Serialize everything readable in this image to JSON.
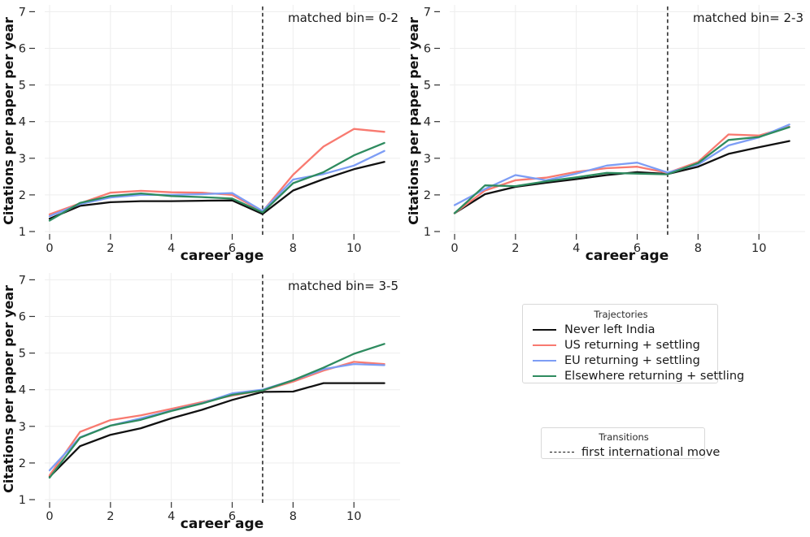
{
  "figure": {
    "ylabel": "Citations per paper per year",
    "xlabel": "career age"
  },
  "chart_data": [
    {
      "type": "line",
      "title": "matched bin= 0-2",
      "xlabel": "career age",
      "ylabel": "Citations per paper per year",
      "x": [
        0,
        1,
        2,
        3,
        4,
        5,
        6,
        7,
        8,
        9,
        10,
        11
      ],
      "x_ticks": [
        0,
        2,
        4,
        6,
        8,
        10
      ],
      "y_ticks": [
        1,
        2,
        3,
        4,
        5,
        6,
        7
      ],
      "ylim": [
        1,
        7
      ],
      "grid": true,
      "vline_x": 7,
      "series": [
        {
          "name": "Never left India",
          "color": "#111111",
          "values": [
            1.35,
            1.7,
            1.8,
            1.83,
            1.83,
            1.84,
            1.85,
            1.48,
            2.12,
            2.43,
            2.7,
            2.9
          ]
        },
        {
          "name": "US returning + settling",
          "color": "#f87a70",
          "values": [
            1.47,
            1.77,
            2.06,
            2.11,
            2.07,
            2.06,
            2.0,
            1.55,
            2.55,
            3.32,
            3.8,
            3.72
          ]
        },
        {
          "name": "EU returning + settling",
          "color": "#7d9df5",
          "values": [
            1.42,
            1.75,
            1.93,
            2.0,
            2.0,
            2.02,
            2.05,
            1.56,
            2.42,
            2.57,
            2.8,
            3.2
          ]
        },
        {
          "name": "Elsewhere returning + settling",
          "color": "#2e8b5f",
          "values": [
            1.3,
            1.78,
            1.97,
            2.04,
            1.97,
            1.94,
            1.9,
            1.52,
            2.32,
            2.62,
            3.08,
            3.42
          ]
        }
      ]
    },
    {
      "type": "line",
      "title": "matched bin= 2-3",
      "xlabel": "career age",
      "ylabel": "Citations per paper per year",
      "x": [
        0,
        1,
        2,
        3,
        4,
        5,
        6,
        7,
        8,
        9,
        10,
        11
      ],
      "x_ticks": [
        0,
        2,
        4,
        6,
        8,
        10
      ],
      "y_ticks": [
        1,
        2,
        3,
        4,
        5,
        6,
        7
      ],
      "ylim": [
        1,
        7
      ],
      "grid": true,
      "vline_x": 7,
      "series": [
        {
          "name": "Never left India",
          "color": "#111111",
          "values": [
            1.5,
            2.02,
            2.22,
            2.33,
            2.43,
            2.54,
            2.62,
            2.57,
            2.77,
            3.12,
            3.3,
            3.47
          ]
        },
        {
          "name": "US returning + settling",
          "color": "#f87a70",
          "values": [
            1.5,
            2.12,
            2.4,
            2.47,
            2.63,
            2.73,
            2.77,
            2.6,
            2.9,
            3.65,
            3.62,
            3.86
          ]
        },
        {
          "name": "EU returning + settling",
          "color": "#7d9df5",
          "values": [
            1.72,
            2.16,
            2.54,
            2.4,
            2.58,
            2.8,
            2.88,
            2.61,
            2.83,
            3.35,
            3.57,
            3.92
          ]
        },
        {
          "name": "Elsewhere returning + settling",
          "color": "#2e8b5f",
          "values": [
            1.5,
            2.26,
            2.24,
            2.37,
            2.48,
            2.6,
            2.58,
            2.56,
            2.87,
            3.5,
            3.58,
            3.85
          ]
        }
      ]
    },
    {
      "type": "line",
      "title": "matched bin= 3-5",
      "xlabel": "career age",
      "ylabel": "Citations per paper per year",
      "x": [
        0,
        1,
        2,
        3,
        4,
        5,
        6,
        7,
        8,
        9,
        10,
        11
      ],
      "x_ticks": [
        0,
        2,
        4,
        6,
        8,
        10
      ],
      "y_ticks": [
        1,
        2,
        3,
        4,
        5,
        6,
        7
      ],
      "ylim": [
        1,
        7
      ],
      "grid": true,
      "vline_x": 7,
      "series": [
        {
          "name": "Never left India",
          "color": "#111111",
          "values": [
            1.62,
            2.46,
            2.77,
            2.95,
            3.22,
            3.45,
            3.72,
            3.94,
            3.95,
            4.18,
            4.18,
            4.18
          ]
        },
        {
          "name": "US returning + settling",
          "color": "#f87a70",
          "values": [
            1.66,
            2.85,
            3.17,
            3.3,
            3.48,
            3.66,
            3.84,
            3.98,
            4.22,
            4.52,
            4.76,
            4.7
          ]
        },
        {
          "name": "EU returning + settling",
          "color": "#7d9df5",
          "values": [
            1.8,
            2.7,
            3.02,
            3.22,
            3.43,
            3.63,
            3.9,
            4.0,
            4.26,
            4.56,
            4.7,
            4.67
          ]
        },
        {
          "name": "Elsewhere returning + settling",
          "color": "#2e8b5f",
          "values": [
            1.6,
            2.69,
            3.02,
            3.18,
            3.42,
            3.62,
            3.86,
            3.98,
            4.26,
            4.6,
            4.98,
            5.25
          ]
        }
      ]
    }
  ],
  "legends": {
    "trajectories": {
      "title": "Trajectories",
      "items": [
        "Never left India",
        "US returning + settling",
        "EU returning + settling",
        "Elsewhere returning + settling"
      ]
    },
    "transitions": {
      "title": "Transitions",
      "item": "first international move"
    }
  },
  "style": {
    "grid_color": "#ededed",
    "tick_color": "#333333",
    "vline_color": "#111111"
  }
}
